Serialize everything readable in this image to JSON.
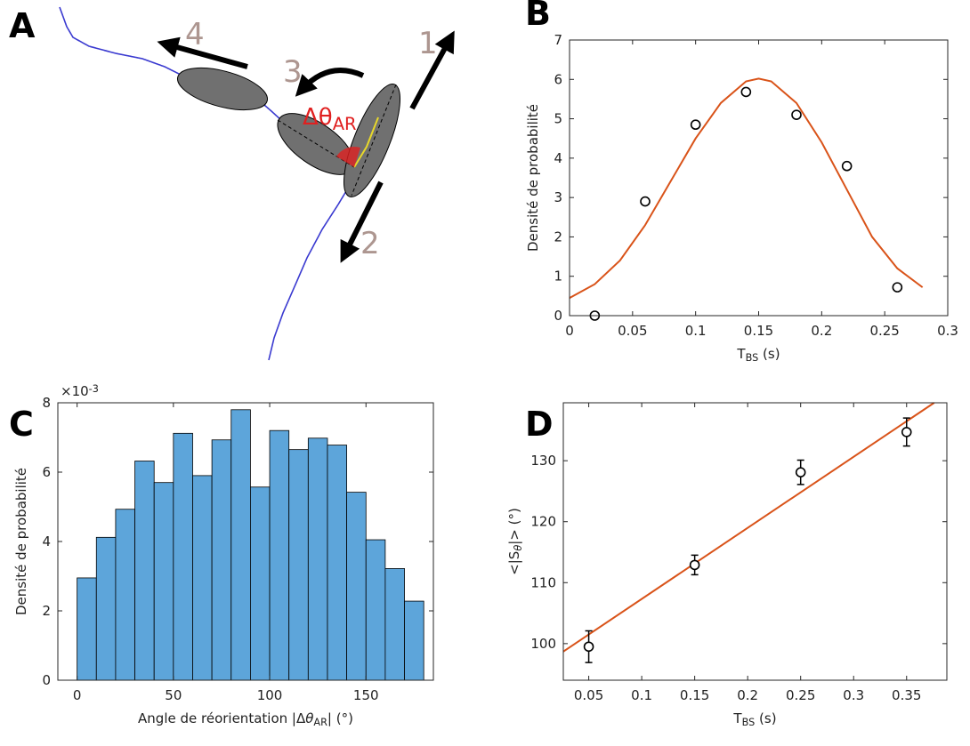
{
  "diagram": {
    "panel_label": "A",
    "labels": [
      "1",
      "2",
      "3",
      "4"
    ],
    "angle_label": [
      {
        "text": "Δθ"
      },
      {
        "text": "AR",
        "sub": true
      }
    ]
  },
  "chart_data": [
    {
      "type": "scatter",
      "panel_label": "B",
      "xlim": [
        0,
        0.3
      ],
      "xticks": [
        0,
        0.05,
        0.1,
        0.15,
        0.2,
        0.25,
        0.3
      ],
      "ylim": [
        0,
        7
      ],
      "yticks": [
        0,
        1,
        2,
        3,
        4,
        5,
        6,
        7
      ],
      "xlabel": [
        {
          "text": "T"
        },
        {
          "text": "BS",
          "sub": true
        },
        {
          "text": " (s)"
        }
      ],
      "ylabel": [
        {
          "text": "Densité de probabilité"
        }
      ],
      "series": [
        {
          "mode": "line",
          "color": "#d95319",
          "x": [
            0,
            0.02,
            0.04,
            0.06,
            0.08,
            0.1,
            0.12,
            0.14,
            0.15,
            0.16,
            0.18,
            0.2,
            0.22,
            0.24,
            0.26,
            0.28
          ],
          "values": [
            0.45,
            0.8,
            1.4,
            2.3,
            3.4,
            4.5,
            5.4,
            5.95,
            6.02,
            5.95,
            5.4,
            4.4,
            3.2,
            2.0,
            1.2,
            0.72
          ]
        },
        {
          "mode": "markers",
          "color": "#000000",
          "x": [
            0.02,
            0.06,
            0.1,
            0.14,
            0.18,
            0.22,
            0.26
          ],
          "values": [
            0,
            2.9,
            4.85,
            5.68,
            5.1,
            3.8,
            0.72
          ]
        }
      ]
    },
    {
      "type": "histogram",
      "panel_label": "C",
      "color": "#5da5da",
      "bins": [
        0,
        10,
        20,
        30,
        40,
        50,
        60,
        70,
        80,
        90,
        100,
        110,
        120,
        130,
        140,
        150,
        160,
        170,
        180
      ],
      "values": [
        2.95,
        4.12,
        4.93,
        6.32,
        5.7,
        7.12,
        5.9,
        6.93,
        7.8,
        5.57,
        7.2,
        6.65,
        6.98,
        6.78,
        5.42,
        4.05,
        3.22,
        2.28
      ],
      "xlim": [
        -10,
        185
      ],
      "xticks": [
        0,
        50,
        100,
        150
      ],
      "ylim": [
        0,
        8
      ],
      "yticks": [
        0,
        2,
        4,
        6,
        8
      ],
      "yexponent": [
        {
          "text": "×10"
        },
        {
          "text": "-3",
          "sup": true
        }
      ],
      "xlabel": [
        {
          "text": "Angle de réorientation |Δ"
        },
        {
          "text": "θ",
          "italic": true
        },
        {
          "text": "AR",
          "sub": true
        },
        {
          "text": "| (°)"
        }
      ],
      "ylabel": [
        {
          "text": "Densité de probabilité"
        }
      ]
    },
    {
      "type": "scatter",
      "panel_label": "D",
      "xlim": [
        0.026,
        0.388
      ],
      "xticks": [
        0.05,
        0.1,
        0.15,
        0.2,
        0.25,
        0.3,
        0.35
      ],
      "ylim": [
        94,
        139.5
      ],
      "yticks": [
        100,
        110,
        120,
        130
      ],
      "xlabel": [
        {
          "text": "T"
        },
        {
          "text": "BS",
          "sub": true
        },
        {
          "text": " (s)"
        }
      ],
      "ylabel": [
        {
          "text": "<|S"
        },
        {
          "text": "θ",
          "sub": true,
          "italic": true
        },
        {
          "text": "|> (°)"
        }
      ],
      "series": [
        {
          "mode": "line",
          "color": "#d95319",
          "x": [
            0.026,
            0.376
          ],
          "values": [
            98.7,
            139.5
          ]
        },
        {
          "mode": "markers",
          "color": "#000000",
          "x": [
            0.05,
            0.15,
            0.25,
            0.35
          ],
          "values": [
            99.5,
            112.9,
            128.1,
            134.7
          ],
          "errors": [
            2.6,
            1.6,
            2.0,
            2.3
          ]
        }
      ]
    }
  ]
}
